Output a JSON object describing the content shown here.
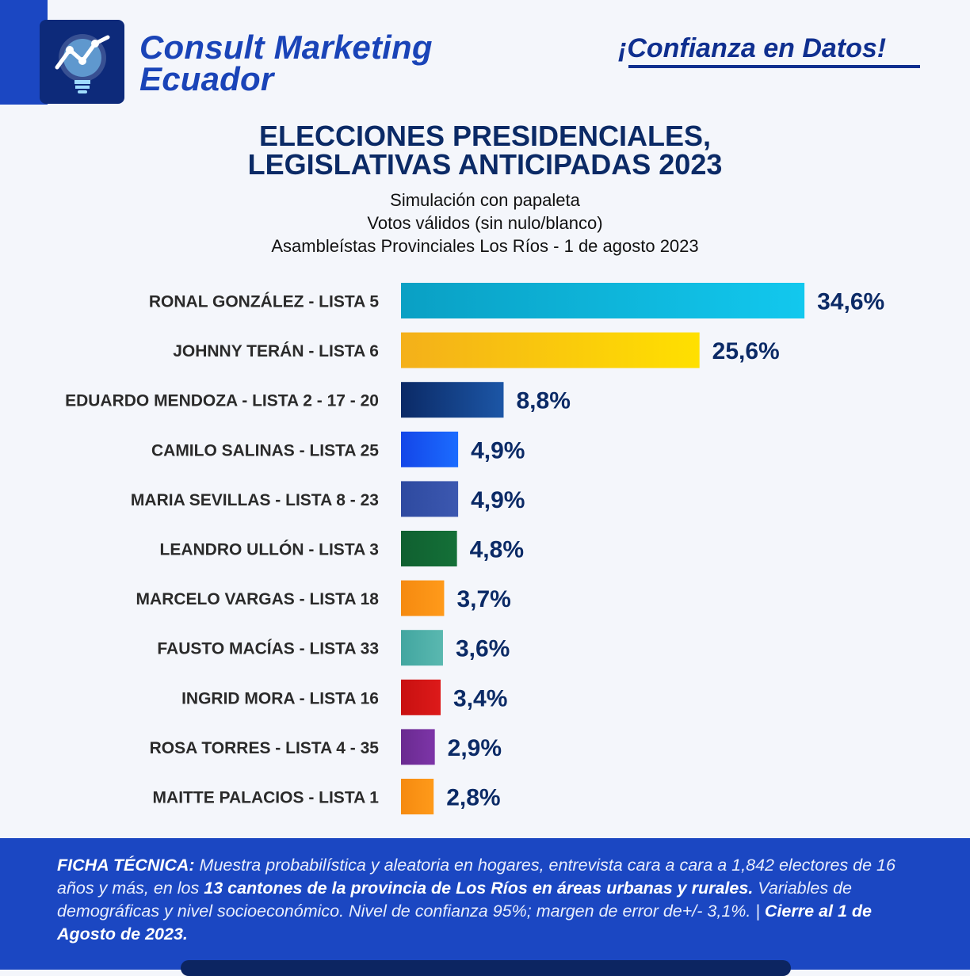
{
  "header": {
    "brand_line1": "Consult Marketing",
    "brand_line2": "Ecuador",
    "tagline": "¡Confianza en Datos!"
  },
  "title": {
    "line1": "ELECCIONES PRESIDENCIALES,",
    "line2": "LEGISLATIVAS ANTICIPADAS 2023"
  },
  "subtitle": {
    "line1": "Simulación con papaleta",
    "line2": "Votos válidos (sin nulo/blanco)",
    "line3": "Asambleístas Provinciales Los Ríos - 1 de agosto 2023"
  },
  "chart_data": {
    "type": "bar",
    "orientation": "horizontal",
    "categories": [
      "RONAL GONZÁLEZ - LISTA 5",
      "JOHNNY TERÁN - LISTA 6",
      "EDUARDO MENDOZA - LISTA 2 - 17 - 20",
      "CAMILO SALINAS - LISTA 25",
      "MARIA SEVILLAS - LISTA 8 - 23",
      "LEANDRO ULLÓN - LISTA 3",
      "MARCELO VARGAS - LISTA 18",
      "FAUSTO MACÍAS - LISTA 33",
      "INGRID MORA - LISTA 16",
      "ROSA TORRES - LISTA 4 - 35",
      "MAITTE PALACIOS - LISTA 1"
    ],
    "values": [
      34.6,
      25.6,
      8.8,
      4.9,
      4.9,
      4.8,
      3.7,
      3.6,
      3.4,
      2.9,
      2.8
    ],
    "value_labels": [
      "34,6%",
      "25,6%",
      "8,8%",
      "4,9%",
      "4,9%",
      "4,8%",
      "3,7%",
      "3,6%",
      "3,4%",
      "2,9%",
      "2,8%"
    ],
    "colors": [
      [
        "#0aa0c4",
        "#12c8ee"
      ],
      [
        "#f4b01a",
        "#ffe000"
      ],
      [
        "#0b2a66",
        "#1c56a6"
      ],
      [
        "#1446e8",
        "#1b6cff"
      ],
      [
        "#2e4aa0",
        "#3c58b0"
      ],
      [
        "#106030",
        "#147038"
      ],
      [
        "#f58a10",
        "#ff9a1a"
      ],
      [
        "#42a6a0",
        "#5ab8b0"
      ],
      [
        "#c81010",
        "#dd1a1a"
      ],
      [
        "#6a2a90",
        "#7d35a8"
      ],
      [
        "#f58a10",
        "#ff9a1a"
      ]
    ],
    "label_color": "#0b2a66",
    "xlim": [
      0,
      35
    ]
  },
  "footer": {
    "label": "FICHA TÉCNICA:",
    "text1": " Muestra probabilística y aleatoria en hogares, entrevista cara a cara a 1,842 electores de 16 años y más, en los ",
    "bold1": "13 cantones de la provincia de Los Ríos en áreas urbanas y rurales.",
    "text2": " Variables de demográficas y nivel socioeconómico. Nivel de confianza 95%; margen de error de+/- 3,1%. | ",
    "bold2": "Cierre al 1 de Agosto de 2023."
  }
}
